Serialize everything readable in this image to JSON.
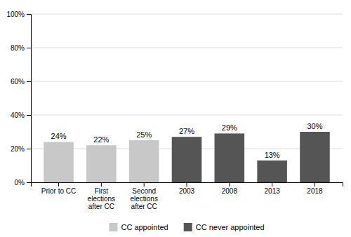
{
  "chart_data": {
    "type": "bar",
    "categories": [
      "Prior to CC",
      "First\nelections\nafter CC",
      "Second\nelections\nafter CC",
      "2003",
      "2008",
      "2013",
      "2018"
    ],
    "series": [
      {
        "name": "CC appointed",
        "color": "#c8c8c8",
        "values": [
          24,
          22,
          25,
          null,
          null,
          null,
          null
        ],
        "value_labels": [
          "24%",
          "22%",
          "25%",
          null,
          null,
          null,
          null
        ]
      },
      {
        "name": "CC never appointed",
        "color": "#555555",
        "values": [
          null,
          null,
          null,
          27,
          29,
          13,
          30
        ],
        "value_labels": [
          null,
          null,
          null,
          "27%",
          "29%",
          "13%",
          "30%"
        ]
      }
    ],
    "ylim": [
      0,
      100
    ],
    "yticks": [
      {
        "value": 0,
        "label": "0%"
      },
      {
        "value": 20,
        "label": "20%"
      },
      {
        "value": 40,
        "label": "40%"
      },
      {
        "value": 60,
        "label": "60%"
      },
      {
        "value": 80,
        "label": "80%"
      },
      {
        "value": 100,
        "label": "100%"
      }
    ],
    "grid": true,
    "data_labels": true,
    "legend": "bottom"
  }
}
